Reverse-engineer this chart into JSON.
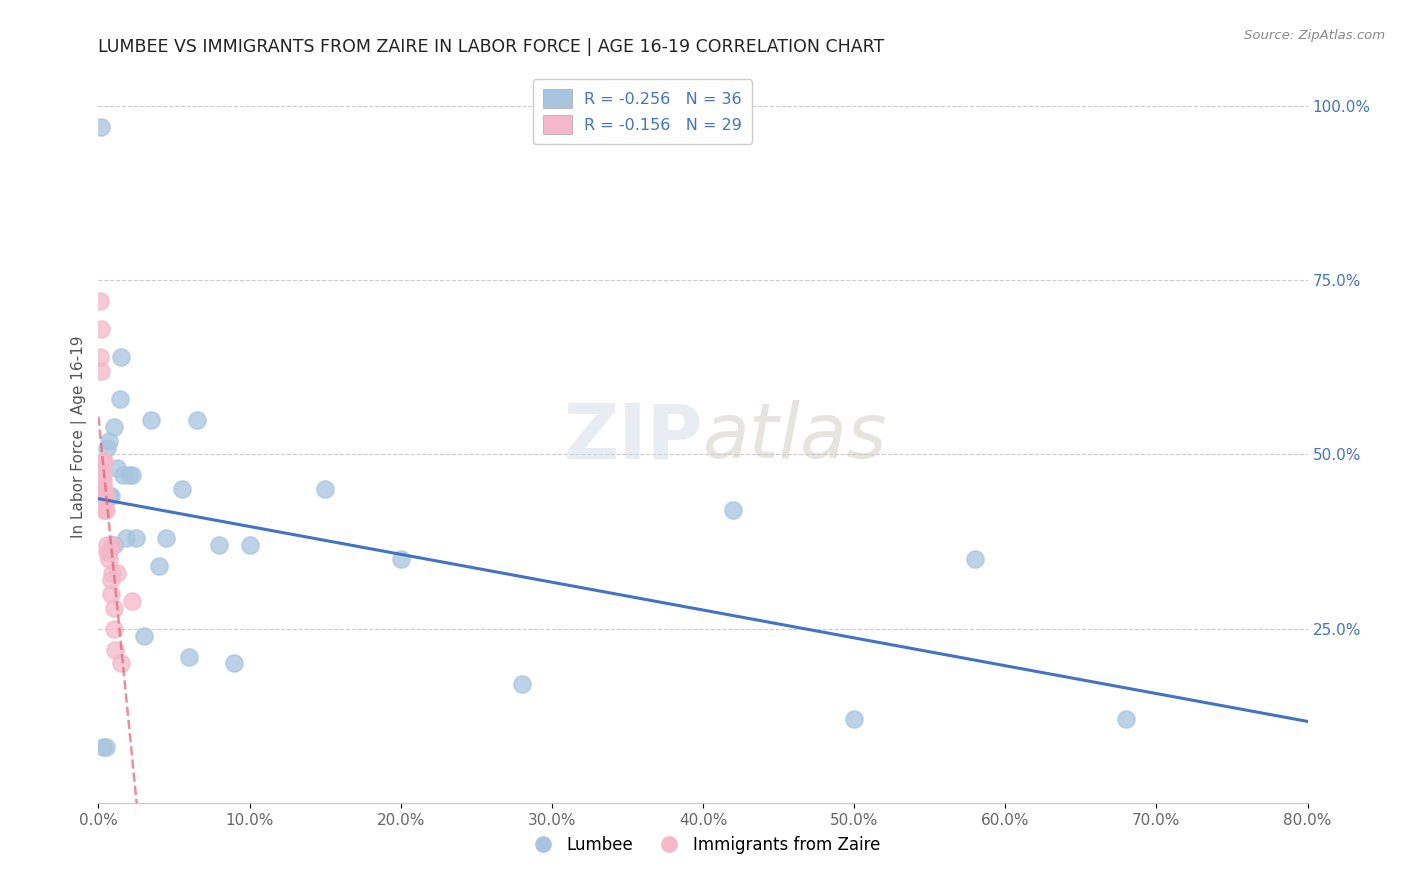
{
  "title": "LUMBEE VS IMMIGRANTS FROM ZAIRE IN LABOR FORCE | AGE 16-19 CORRELATION CHART",
  "source": "Source: ZipAtlas.com",
  "ylabel": "In Labor Force | Age 16-19",
  "right_yticks": [
    "100.0%",
    "75.0%",
    "50.0%",
    "25.0%"
  ],
  "right_ytick_vals": [
    1.0,
    0.75,
    0.5,
    0.25
  ],
  "legend_lumbee_r": "R = ",
  "legend_lumbee_r_val": "-0.256",
  "legend_lumbee_n": "   N = 36",
  "legend_zaire_r": "R = ",
  "legend_zaire_r_val": "-0.156",
  "legend_zaire_n": "   N = 29",
  "lumbee_color": "#a8c4e0",
  "zaire_color": "#f4b8c8",
  "lumbee_line_color": "#4472c4",
  "zaire_line_color": "#e06070",
  "watermark_zip": "ZIP",
  "watermark_atlas": "atlas",
  "lumbee_x": [
    0.002,
    0.003,
    0.005,
    0.005,
    0.006,
    0.007,
    0.007,
    0.008,
    0.009,
    0.01,
    0.01,
    0.012,
    0.014,
    0.015,
    0.016,
    0.018,
    0.02,
    0.022,
    0.025,
    0.03,
    0.035,
    0.04,
    0.045,
    0.055,
    0.06,
    0.065,
    0.08,
    0.09,
    0.1,
    0.15,
    0.2,
    0.28,
    0.42,
    0.5,
    0.58,
    0.68
  ],
  "lumbee_y": [
    0.97,
    0.08,
    0.08,
    0.44,
    0.51,
    0.44,
    0.52,
    0.44,
    0.37,
    0.37,
    0.54,
    0.48,
    0.58,
    0.64,
    0.47,
    0.38,
    0.47,
    0.47,
    0.38,
    0.24,
    0.55,
    0.34,
    0.38,
    0.45,
    0.21,
    0.55,
    0.37,
    0.2,
    0.37,
    0.45,
    0.35,
    0.17,
    0.42,
    0.12,
    0.35,
    0.12
  ],
  "zaire_x": [
    0.001,
    0.001,
    0.002,
    0.002,
    0.002,
    0.003,
    0.003,
    0.003,
    0.003,
    0.004,
    0.004,
    0.004,
    0.004,
    0.005,
    0.005,
    0.006,
    0.006,
    0.007,
    0.007,
    0.008,
    0.008,
    0.009,
    0.009,
    0.01,
    0.01,
    0.011,
    0.012,
    0.015,
    0.022
  ],
  "zaire_y": [
    0.72,
    0.64,
    0.68,
    0.62,
    0.48,
    0.49,
    0.47,
    0.46,
    0.45,
    0.49,
    0.45,
    0.44,
    0.42,
    0.44,
    0.42,
    0.37,
    0.36,
    0.36,
    0.35,
    0.32,
    0.3,
    0.37,
    0.33,
    0.28,
    0.25,
    0.22,
    0.33,
    0.2,
    0.29
  ],
  "xlim": [
    0.0,
    0.8
  ],
  "ylim": [
    0.0,
    1.05
  ],
  "xtick_vals": [
    0.0,
    0.1,
    0.2,
    0.3,
    0.4,
    0.5,
    0.6,
    0.7,
    0.8
  ],
  "xtick_labels": [
    "0.0%",
    "10.0%",
    "20.0%",
    "30.0%",
    "40.0%",
    "50.0%",
    "60.0%",
    "70.0%",
    "80.0%"
  ]
}
